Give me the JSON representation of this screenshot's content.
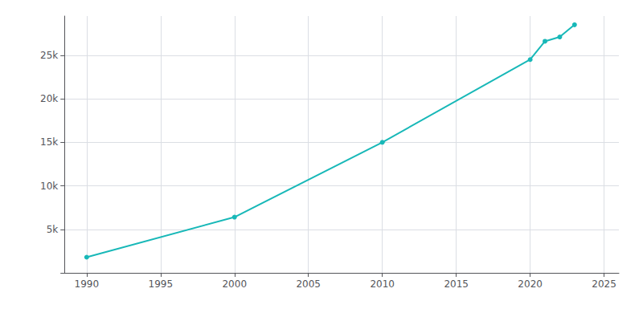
{
  "chart_data": {
    "type": "line",
    "x": [
      1990,
      2000,
      2010,
      2020,
      2021,
      2022,
      2023
    ],
    "values": [
      1800,
      6400,
      15000,
      24500,
      26600,
      27100,
      28500
    ],
    "color": "#18B8B8",
    "marker": "o",
    "xlim": [
      1988.5,
      2026
    ],
    "xticks": [
      1990,
      1995,
      2000,
      2005,
      2010,
      2015,
      2020,
      2025
    ],
    "ylim": [
      0,
      29500
    ],
    "yticks": [
      {
        "value": 0,
        "label": ""
      },
      {
        "value": 5000,
        "label": "5k"
      },
      {
        "value": 10000,
        "label": "10k"
      },
      {
        "value": 15000,
        "label": "15k"
      },
      {
        "value": 20000,
        "label": "20k"
      },
      {
        "value": 25000,
        "label": "25k"
      }
    ],
    "grid": true
  }
}
